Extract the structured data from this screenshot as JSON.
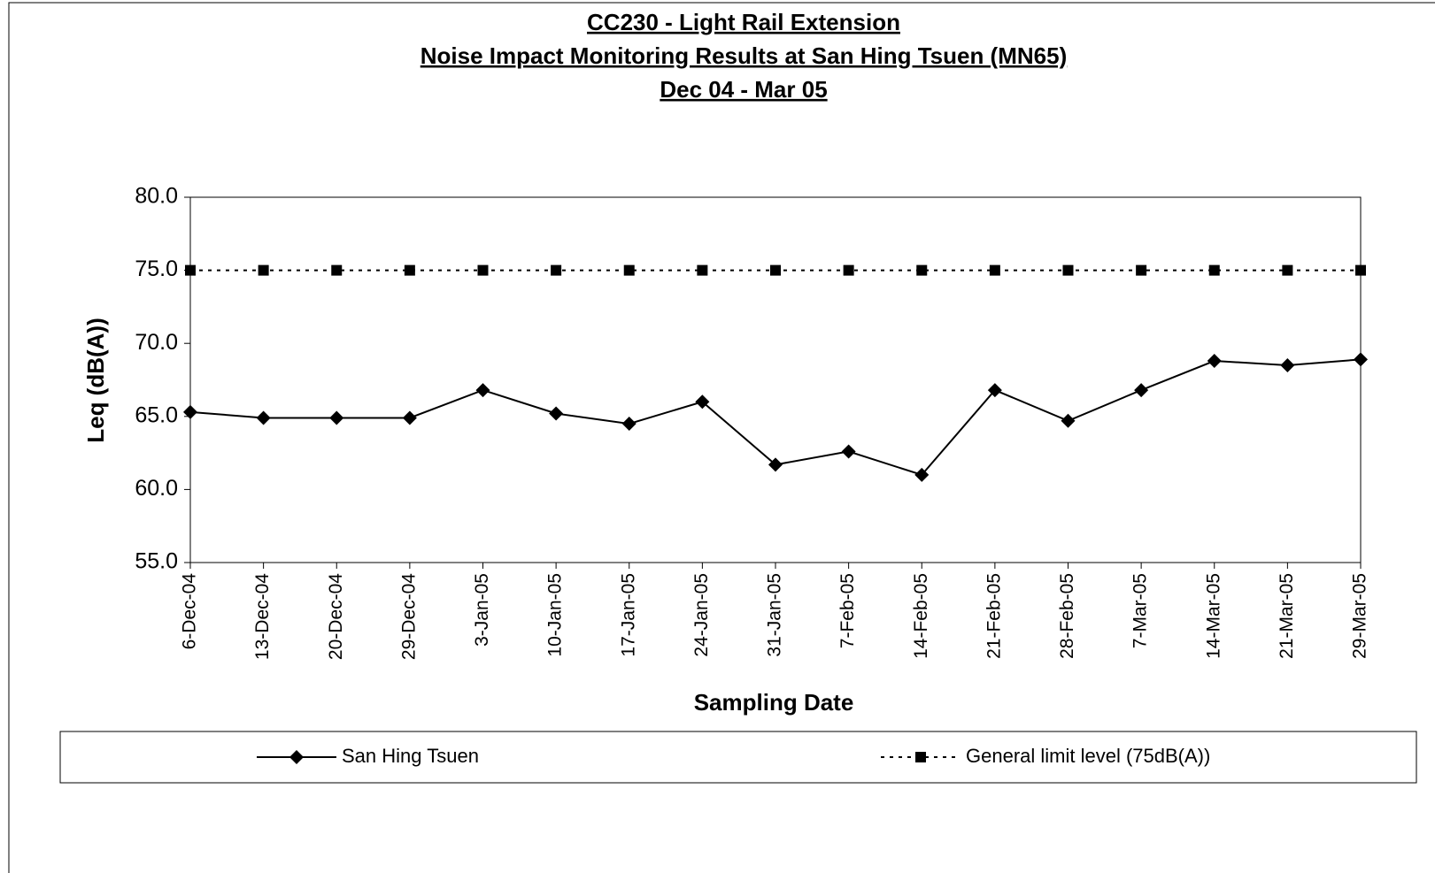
{
  "chart_data": {
    "type": "line",
    "title": "CC230 - Light Rail Extension",
    "subtitle": "Noise Impact Monitoring Results at San Hing Tsuen (MN65)",
    "period": "Dec 04 - Mar 05",
    "x_label": "Sampling Date",
    "y_label": "Leq (dB(A))",
    "categories": [
      "6-Dec-04",
      "13-Dec-04",
      "20-Dec-04",
      "29-Dec-04",
      "3-Jan-05",
      "10-Jan-05",
      "17-Jan-05",
      "24-Jan-05",
      "31-Jan-05",
      "7-Feb-05",
      "14-Feb-05",
      "21-Feb-05",
      "28-Feb-05",
      "7-Mar-05",
      "14-Mar-05",
      "21-Mar-05",
      "29-Mar-05"
    ],
    "series": [
      {
        "name": "San Hing Tsuen",
        "color": "#000000",
        "marker": "diamond",
        "dash": "solid",
        "values": [
          65.3,
          64.9,
          64.9,
          64.9,
          66.8,
          65.2,
          64.5,
          66.0,
          61.7,
          62.6,
          61.0,
          66.8,
          64.7,
          66.8,
          68.8,
          68.5,
          68.9
        ]
      },
      {
        "name": "General limit level (75dB(A))",
        "color": "#000000",
        "marker": "square",
        "dash": "dotted",
        "values": [
          75,
          75,
          75,
          75,
          75,
          75,
          75,
          75,
          75,
          75,
          75,
          75,
          75,
          75,
          75,
          75,
          75
        ]
      }
    ],
    "ylim": [
      55,
      80
    ],
    "yticks": [
      {
        "value": 55,
        "label": "55.0"
      },
      {
        "value": 60,
        "label": "60.0"
      },
      {
        "value": 65,
        "label": "65.0"
      },
      {
        "value": 70,
        "label": "70.0"
      },
      {
        "value": 75,
        "label": "75.0"
      },
      {
        "value": 80,
        "label": "80.0"
      }
    ],
    "legend": "bottom"
  }
}
